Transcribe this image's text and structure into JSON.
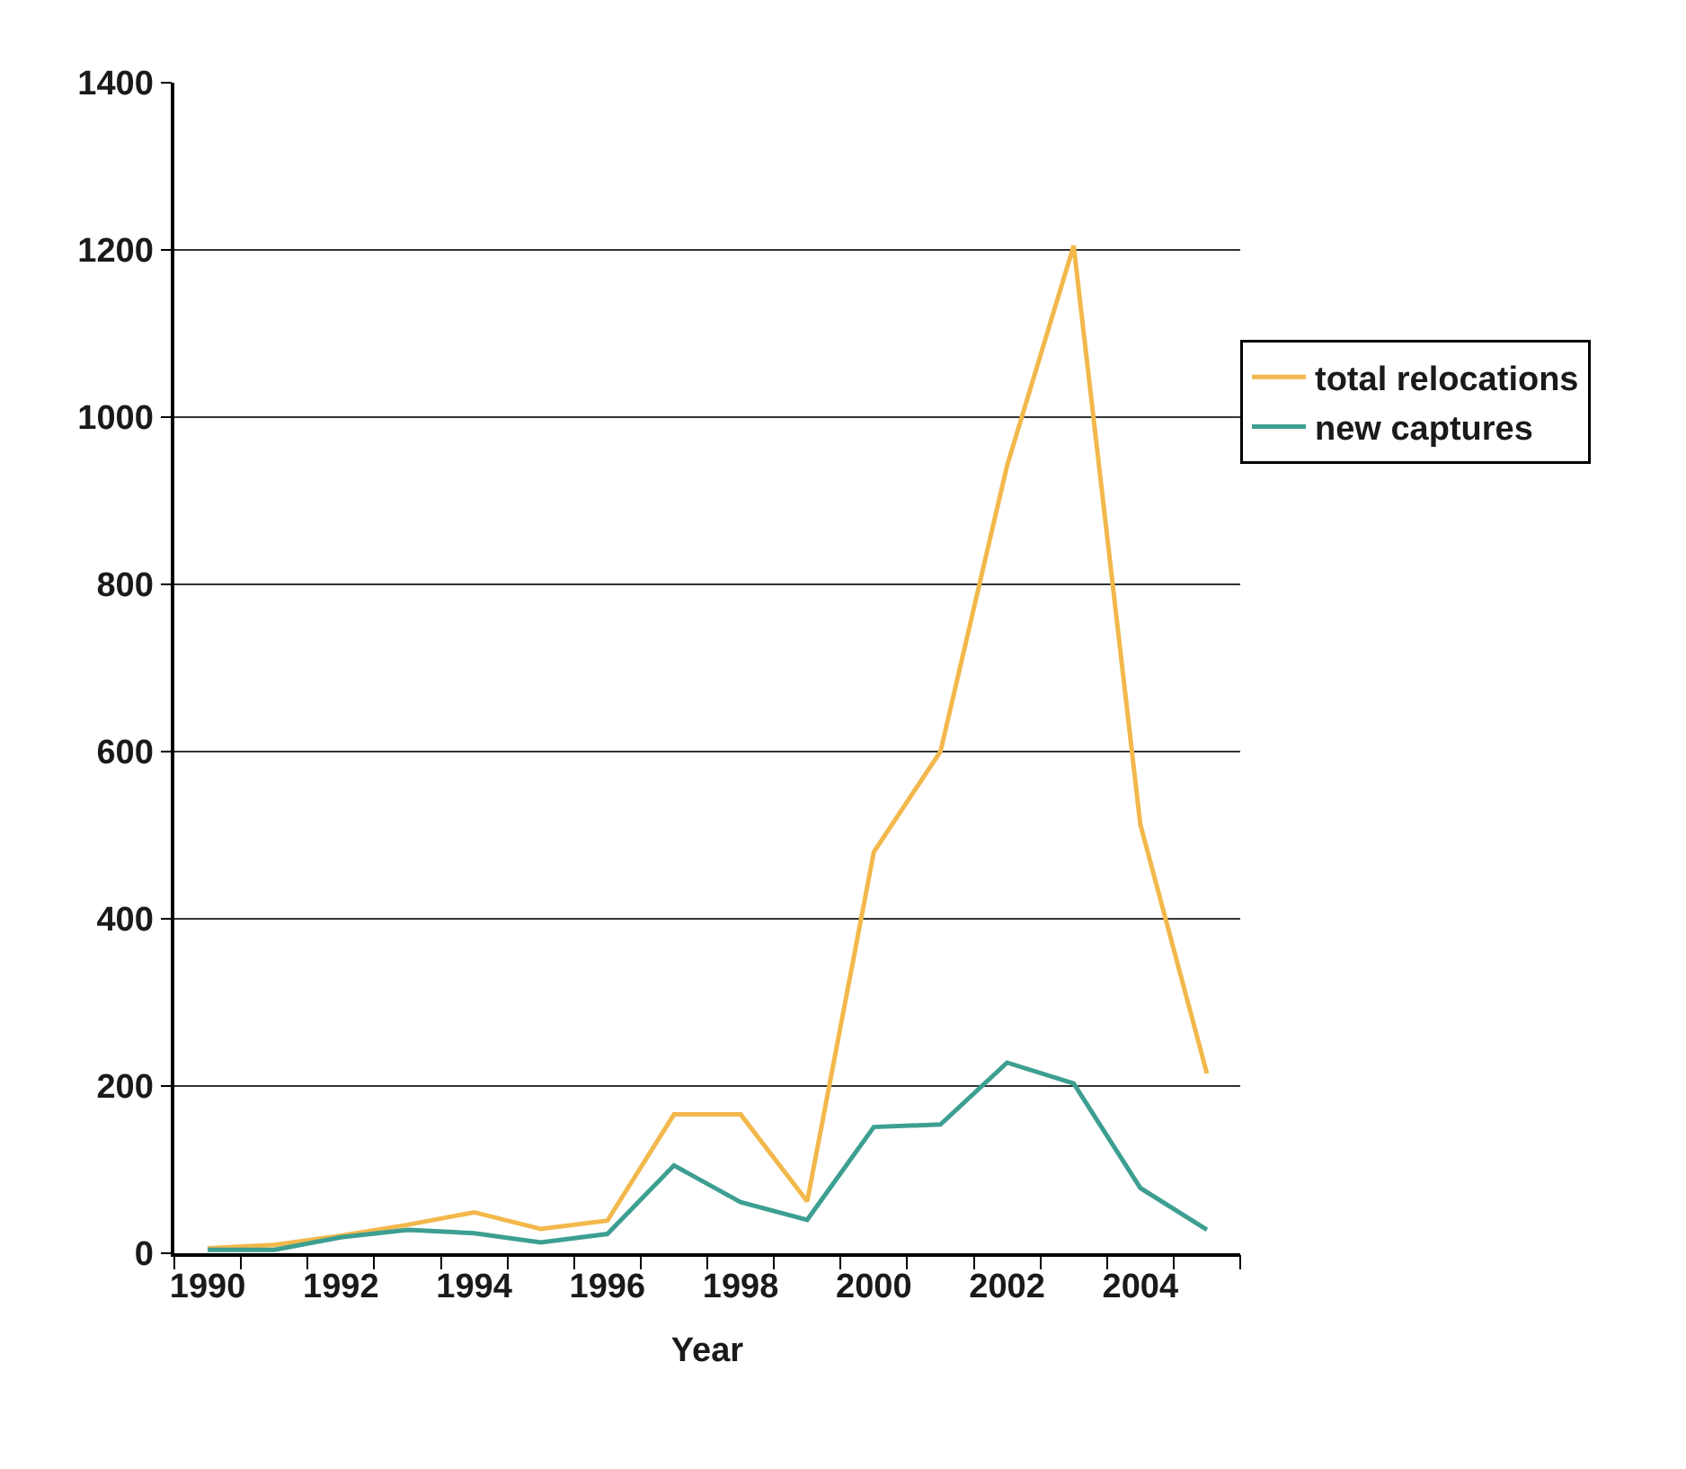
{
  "chart_data": {
    "type": "line",
    "xlabel": "Year",
    "x": [
      1990,
      1991,
      1992,
      1993,
      1994,
      1995,
      1996,
      1997,
      1998,
      1999,
      2000,
      2001,
      2002,
      2003,
      2004,
      2005
    ],
    "series": [
      {
        "name": "total relocations",
        "color": "#f2b84b",
        "values": [
          6,
          10,
          21,
          34,
          49,
          29,
          39,
          166,
          166,
          62,
          480,
          600,
          942,
          1205,
          513,
          215
        ]
      },
      {
        "name": "new captures",
        "color": "#3d9f91",
        "values": [
          4,
          4,
          19,
          28,
          24,
          13,
          23,
          105,
          61,
          40,
          151,
          154,
          228,
          203,
          78,
          28
        ]
      }
    ],
    "xlim": [
      1989.5,
      2005.5
    ],
    "xticks": [
      1990,
      1992,
      1994,
      1996,
      1998,
      2000,
      2002,
      2004,
      {
        "value": 1989.5,
        "label": null
      },
      {
        "value": 1990.5,
        "label": null
      },
      {
        "value": 1991.5,
        "label": null
      },
      {
        "value": 1992.5,
        "label": null
      },
      {
        "value": 1993.5,
        "label": null
      },
      {
        "value": 1994.5,
        "label": null
      },
      {
        "value": 1995.5,
        "label": null
      },
      {
        "value": 1996.5,
        "label": null
      },
      {
        "value": 1997.5,
        "label": null
      },
      {
        "value": 1998.5,
        "label": null
      },
      {
        "value": 1999.5,
        "label": null
      },
      {
        "value": 2000.5,
        "label": null
      },
      {
        "value": 2001.5,
        "label": null
      },
      {
        "value": 2002.5,
        "label": null
      },
      {
        "value": 2003.5,
        "label": null
      },
      {
        "value": 2004.5,
        "label": null
      },
      {
        "value": 2005.5,
        "label": null
      }
    ],
    "ylim": [
      0,
      1400
    ],
    "yticks": [
      0,
      200,
      400,
      600,
      800,
      1000,
      1200,
      1400
    ],
    "grid": "y",
    "legend": "right",
    "marker": "none",
    "line_style": "solid"
  }
}
